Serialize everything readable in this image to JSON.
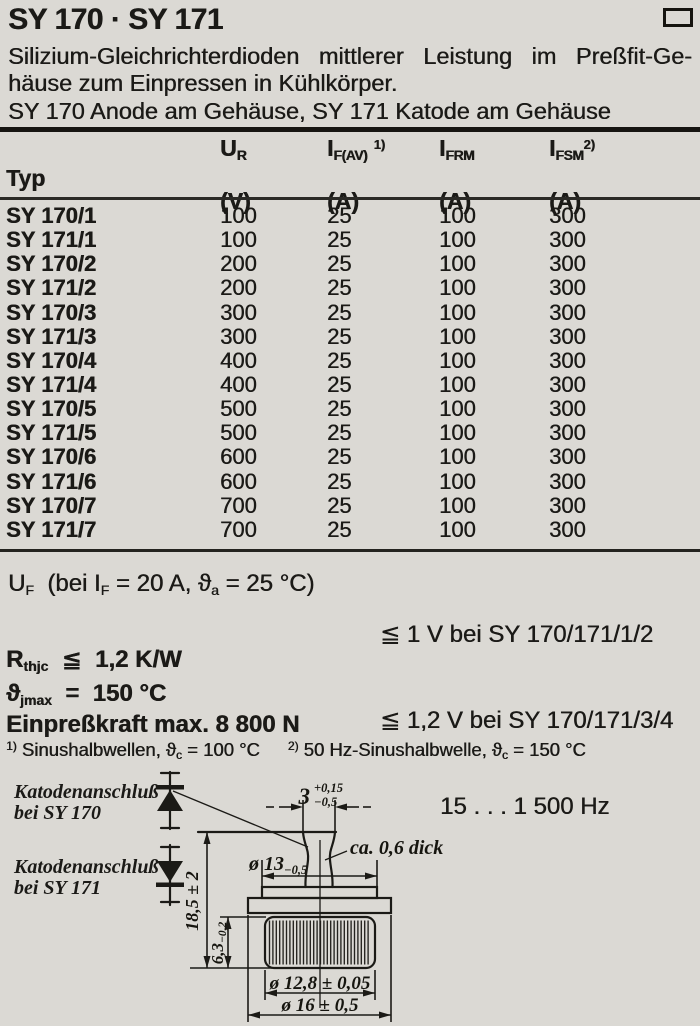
{
  "header": {
    "title": "SY 170 · SY 171"
  },
  "intro": {
    "line1": "Silizium-Gleichrichterdioden mittlerer Leistung im Preßfit-Ge-",
    "line2": "häuse zum Einpressen in Kühlkörper.",
    "line3": "SY 170 Anode am Gehäuse, SY 171 Katode am Gehäuse"
  },
  "table": {
    "col_typ": "Typ",
    "cols": [
      {
        "main": "U",
        "sub": "R",
        "sup": "",
        "unit": "(V)"
      },
      {
        "main": "I",
        "sub": "F(AV)",
        "sup": "1)",
        "unit": "(A)"
      },
      {
        "main": "I",
        "sub": "FRM",
        "sup": "",
        "unit": "(A)"
      },
      {
        "main": "I",
        "sub": "FSM",
        "sup": "2)",
        "unit": "(A)"
      }
    ],
    "rows": [
      {
        "typ": "SY 170/1",
        "ur": "100",
        "ifav": "25",
        "ifrm": "100",
        "ifsm": "300"
      },
      {
        "typ": "SY 171/1",
        "ur": "100",
        "ifav": "25",
        "ifrm": "100",
        "ifsm": "300"
      },
      {
        "typ": "SY 170/2",
        "ur": "200",
        "ifav": "25",
        "ifrm": "100",
        "ifsm": "300"
      },
      {
        "typ": "SY 171/2",
        "ur": "200",
        "ifav": "25",
        "ifrm": "100",
        "ifsm": "300"
      },
      {
        "typ": "SY 170/3",
        "ur": "300",
        "ifav": "25",
        "ifrm": "100",
        "ifsm": "300"
      },
      {
        "typ": "SY 171/3",
        "ur": "300",
        "ifav": "25",
        "ifrm": "100",
        "ifsm": "300"
      },
      {
        "typ": "SY 170/4",
        "ur": "400",
        "ifav": "25",
        "ifrm": "100",
        "ifsm": "300"
      },
      {
        "typ": "SY 171/4",
        "ur": "400",
        "ifav": "25",
        "ifrm": "100",
        "ifsm": "300"
      },
      {
        "typ": "SY 170/5",
        "ur": "500",
        "ifav": "25",
        "ifrm": "100",
        "ifsm": "300"
      },
      {
        "typ": "SY 171/5",
        "ur": "500",
        "ifav": "25",
        "ifrm": "100",
        "ifsm": "300"
      },
      {
        "typ": "SY 170/6",
        "ur": "600",
        "ifav": "25",
        "ifrm": "100",
        "ifsm": "300"
      },
      {
        "typ": "SY 171/6",
        "ur": "600",
        "ifav": "25",
        "ifrm": "100",
        "ifsm": "300"
      },
      {
        "typ": "SY 170/7",
        "ur": "700",
        "ifav": "25",
        "ifrm": "100",
        "ifsm": "300"
      },
      {
        "typ": "SY 171/7",
        "ur": "700",
        "ifav": "25",
        "ifrm": "100",
        "ifsm": "300"
      }
    ]
  },
  "uf": {
    "main": "U",
    "sub": "F",
    "c1": "  (bei I",
    "c1_sub": "F",
    "c2": " = 20 A, ϑ",
    "c2_sub": "a",
    "c3": " = 25 °C)",
    "limit1": "≦ 1 V bei SY 170/171/1/2",
    "limit2": "≦ 1,2 V bei SY 170/171/3/4",
    "limit3": "15 . . . 1 500 Hz"
  },
  "params": {
    "rth_main": "R",
    "rth_sub": "thjc",
    "rth_val": "  ≦  1,2 K/W",
    "tj_main": "ϑ",
    "tj_sub": "jmax",
    "tj_val": "  =  150 °C",
    "force": "Einpreßkraft max. 8 800 N"
  },
  "footnotes": {
    "f1_sup": "1)",
    "f1_text": " Sinushalbwellen, ϑ",
    "f1_sub": "c",
    "f1_rest": " = 100 °C",
    "f2_sup": "2)",
    "f2_text": " 50 Hz-Sinushalbwelle, ϑ",
    "f2_sub": "c",
    "f2_rest": " = 150 °C"
  },
  "diagram": {
    "label1_line1": "Katodenanschluß",
    "label1_line2": "bei SY 170",
    "label2_line1": "Katodenanschluß",
    "label2_line2": "bei SY 171",
    "dim_pin_main": "3",
    "dim_pin_plus": "+0,15",
    "dim_pin_minus": "−0,5",
    "dim_thick": "ca. 0,6 dick",
    "dim_d13_main": "ø 13",
    "dim_d13_tol": "−0,5",
    "dim_height": "18,5 ± 2",
    "dim_knurl_h_main": "6,3",
    "dim_knurl_h_tol": "−0,2",
    "dim_d128": "ø 12,8 ± 0,05",
    "dim_d16": "ø 16 ± 0,5"
  }
}
